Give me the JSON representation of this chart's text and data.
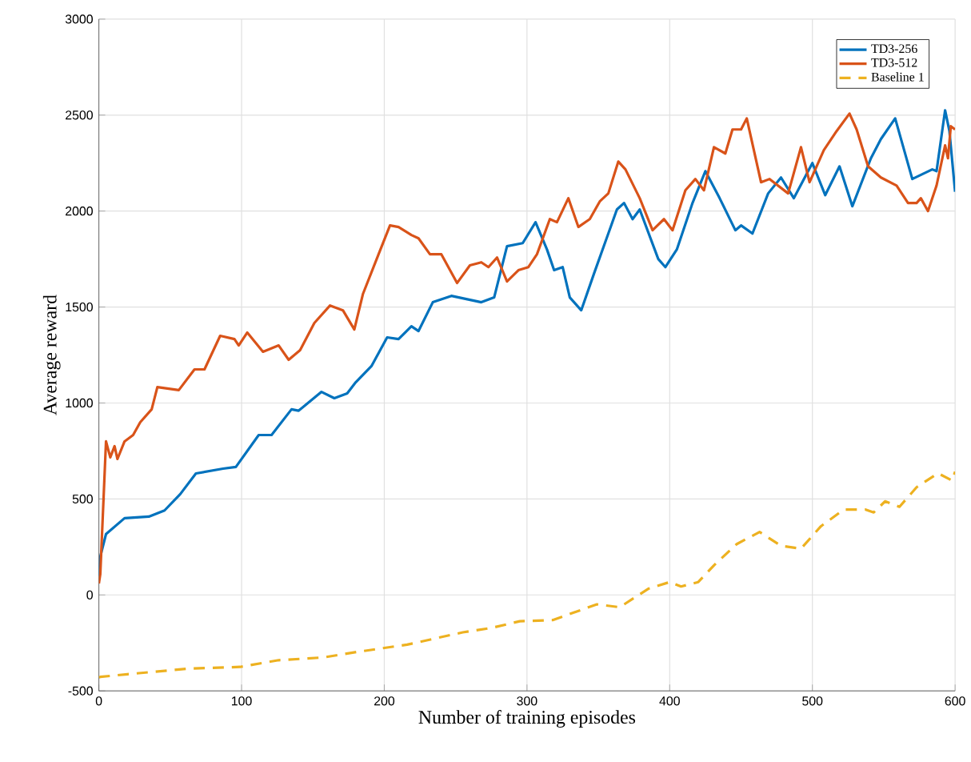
{
  "chart_data": {
    "type": "line",
    "xlabel": "Number of training episodes",
    "ylabel": "Average reward",
    "xlim": [
      0,
      600
    ],
    "ylim": [
      -500,
      3000
    ],
    "xticks": [
      0,
      100,
      200,
      300,
      400,
      500,
      600
    ],
    "yticks": [
      -500,
      0,
      500,
      1000,
      1500,
      2000,
      2500,
      3000
    ],
    "grid": true,
    "legend": "top right",
    "series": [
      {
        "name": "TD3-256",
        "color": "#0072bd",
        "line_style": "solid",
        "x": [
          0,
          1,
          5,
          18,
          35,
          46,
          57,
          68,
          87,
          96,
          112,
          121,
          135,
          140,
          156,
          165,
          174,
          180,
          191,
          202,
          210,
          219,
          224,
          234,
          247,
          268,
          277,
          286,
          297,
          306,
          314,
          319,
          325,
          330,
          338,
          347,
          363,
          368,
          374,
          379,
          392,
          397,
          405,
          416,
          425,
          435,
          446,
          450,
          458,
          469,
          478,
          487,
          500,
          509,
          519,
          528,
          541,
          548,
          558,
          570,
          584,
          587,
          593,
          596,
          600
        ],
        "values": [
          100,
          200,
          317,
          400,
          408,
          440,
          525,
          633,
          658,
          667,
          833,
          833,
          967,
          960,
          1058,
          1025,
          1050,
          1108,
          1192,
          1342,
          1333,
          1400,
          1375,
          1525,
          1558,
          1525,
          1550,
          1817,
          1833,
          1942,
          1800,
          1692,
          1708,
          1550,
          1483,
          1675,
          2008,
          2042,
          1958,
          2008,
          1750,
          1708,
          1800,
          2042,
          2208,
          2067,
          1900,
          1925,
          1883,
          2092,
          2175,
          2067,
          2250,
          2083,
          2233,
          2025,
          2275,
          2375,
          2483,
          2167,
          2217,
          2208,
          2525,
          2417,
          2100
        ]
      },
      {
        "name": "TD3-512",
        "color": "#d95319",
        "line_style": "solid",
        "x": [
          0,
          1,
          5,
          8,
          11,
          13,
          18,
          24,
          29,
          37,
          41,
          56,
          67,
          74,
          85,
          95,
          98,
          104,
          115,
          126,
          133,
          141,
          151,
          162,
          171,
          179,
          185,
          196,
          204,
          210,
          219,
          224,
          232,
          240,
          251,
          260,
          268,
          273,
          279,
          286,
          294,
          301,
          307,
          316,
          321,
          329,
          336,
          344,
          351,
          357,
          364,
          369,
          379,
          388,
          396,
          402,
          411,
          418,
          424,
          431,
          439,
          444,
          450,
          454,
          464,
          470,
          483,
          492,
          498,
          508,
          517,
          526,
          531,
          539,
          548,
          559,
          567,
          573,
          576,
          581,
          587,
          593,
          595,
          597,
          600
        ],
        "values": [
          60,
          108,
          800,
          717,
          775,
          708,
          800,
          833,
          900,
          967,
          1083,
          1067,
          1175,
          1175,
          1350,
          1333,
          1300,
          1367,
          1267,
          1300,
          1225,
          1275,
          1417,
          1508,
          1483,
          1383,
          1567,
          1775,
          1925,
          1917,
          1875,
          1858,
          1775,
          1775,
          1625,
          1717,
          1733,
          1708,
          1758,
          1633,
          1692,
          1708,
          1775,
          1958,
          1942,
          2067,
          1917,
          1958,
          2050,
          2092,
          2258,
          2217,
          2067,
          1900,
          1958,
          1900,
          2108,
          2167,
          2108,
          2333,
          2300,
          2425,
          2425,
          2483,
          2150,
          2167,
          2092,
          2333,
          2150,
          2317,
          2417,
          2508,
          2425,
          2233,
          2175,
          2133,
          2042,
          2042,
          2067,
          2000,
          2133,
          2342,
          2275,
          2442,
          2425
        ]
      },
      {
        "name": "Baseline 1",
        "color": "#edb120",
        "line_style": "dashed",
        "x": [
          0,
          1,
          20,
          63,
          99,
          126,
          157,
          181,
          216,
          255,
          275,
          295,
          318,
          338,
          349,
          365,
          385,
          400,
          408,
          420,
          431,
          447,
          463,
          478,
          492,
          506,
          522,
          537,
          543,
          551,
          561,
          573,
          588,
          598,
          600
        ],
        "values": [
          -430,
          -427,
          -413,
          -384,
          -375,
          -340,
          -326,
          -297,
          -259,
          -195,
          -172,
          -137,
          -131,
          -78,
          -49,
          -64,
          32,
          67,
          44,
          67,
          154,
          265,
          328,
          256,
          241,
          358,
          445,
          445,
          430,
          488,
          459,
          561,
          634,
          596,
          642
        ]
      }
    ]
  }
}
